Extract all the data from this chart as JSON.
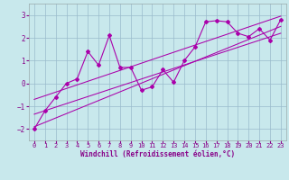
{
  "title": "",
  "xlabel": "Windchill (Refroidissement éolien,°C)",
  "x_data": [
    0,
    1,
    2,
    3,
    4,
    5,
    6,
    7,
    8,
    9,
    10,
    11,
    12,
    13,
    14,
    15,
    16,
    17,
    18,
    19,
    20,
    21,
    22,
    23
  ],
  "y_data": [
    -2.0,
    -1.2,
    -0.6,
    0.0,
    0.2,
    1.4,
    0.8,
    2.1,
    0.7,
    0.7,
    -0.3,
    -0.15,
    0.6,
    0.05,
    1.0,
    1.6,
    2.7,
    2.75,
    2.7,
    2.2,
    2.05,
    2.4,
    1.9,
    2.8
  ],
  "line_color": "#aa00aa",
  "background_color": "#c8e8ec",
  "grid_color": "#99bbcc",
  "ylim": [
    -2.5,
    3.5
  ],
  "xlim": [
    -0.5,
    23.5
  ],
  "yticks": [
    -2,
    -1,
    0,
    1,
    2,
    3
  ],
  "reg_line1_y": [
    -1.9,
    2.5
  ],
  "reg_line2_y": [
    -1.35,
    2.2
  ],
  "reg_line3_y": [
    -0.7,
    2.95
  ],
  "tick_color": "#880088",
  "xlabel_color": "#880088",
  "xlabel_fontsize": 5.5,
  "tick_fontsize": 5.0,
  "ytick_fontsize": 5.5
}
